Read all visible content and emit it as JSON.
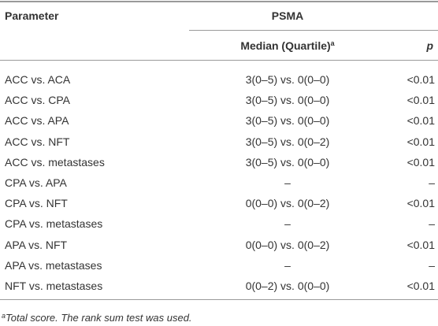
{
  "header": {
    "parameter": "Parameter",
    "group": "PSMA",
    "median": "Median (Quartile)",
    "median_sup": "a",
    "p": "p"
  },
  "table": {
    "rows": [
      [
        "ACC vs. ACA",
        "3(0–5) vs. 0(0–0)",
        "<0.01"
      ],
      [
        "ACC vs. CPA",
        "3(0–5) vs. 0(0–0)",
        "<0.01"
      ],
      [
        "ACC vs. APA",
        "3(0–5) vs. 0(0–0)",
        "<0.01"
      ],
      [
        "ACC vs. NFT",
        "3(0–5) vs. 0(0–2)",
        "<0.01"
      ],
      [
        "ACC vs. metastases",
        "3(0–5) vs. 0(0–0)",
        "<0.01"
      ],
      [
        "CPA vs. APA",
        "–",
        "–"
      ],
      [
        "CPA vs. NFT",
        "0(0–0) vs. 0(0–2)",
        "<0.01"
      ],
      [
        "CPA vs. metastases",
        "–",
        "–"
      ],
      [
        "APA vs. NFT",
        "0(0–0) vs. 0(0–2)",
        "<0.01"
      ],
      [
        "APA vs. metastases",
        "–",
        "–"
      ],
      [
        "NFT vs. metastases",
        "0(0–2) vs. 0(0–0)",
        "<0.01"
      ]
    ]
  },
  "footnote": {
    "marker": "a",
    "text": "Total score. The rank sum test was used."
  }
}
